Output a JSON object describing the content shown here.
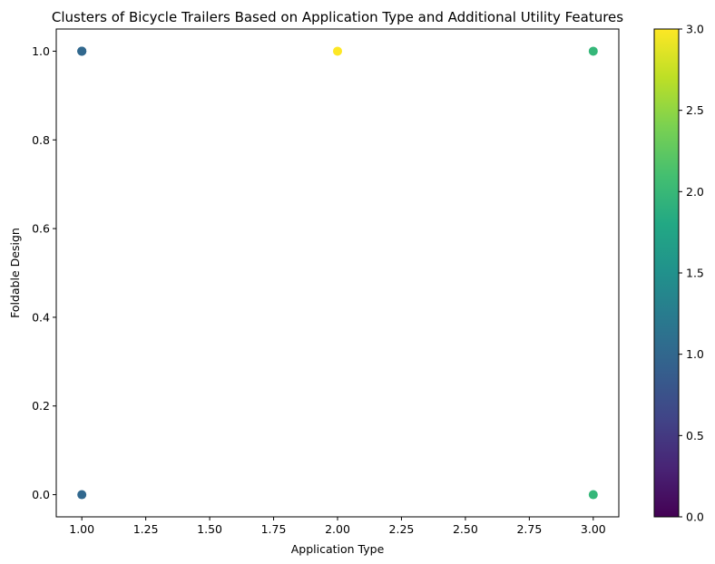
{
  "chart_data": {
    "type": "scatter",
    "title": "Clusters of Bicycle Trailers Based on Application Type and Additional Utility Features",
    "xlabel": "Application Type",
    "ylabel": "Foldable Design",
    "xlim": [
      0.9,
      3.1
    ],
    "ylim": [
      -0.05,
      1.05
    ],
    "xticks": [
      "1.00",
      "1.25",
      "1.50",
      "1.75",
      "2.00",
      "2.25",
      "2.50",
      "2.75",
      "3.00"
    ],
    "xtick_values": [
      1.0,
      1.25,
      1.5,
      1.75,
      2.0,
      2.25,
      2.5,
      2.75,
      3.0
    ],
    "yticks": [
      "0.0",
      "0.2",
      "0.4",
      "0.6",
      "0.8",
      "1.0"
    ],
    "ytick_values": [
      0.0,
      0.2,
      0.4,
      0.6,
      0.8,
      1.0
    ],
    "grid": false,
    "points": [
      {
        "x": 1,
        "y": 1,
        "cluster": 1
      },
      {
        "x": 1,
        "y": 1,
        "cluster": 1
      },
      {
        "x": 1,
        "y": 1,
        "cluster": 1
      },
      {
        "x": 1,
        "y": 0,
        "cluster": 1
      },
      {
        "x": 2,
        "y": 1,
        "cluster": 3
      },
      {
        "x": 3,
        "y": 1,
        "cluster": 2
      },
      {
        "x": 3,
        "y": 0,
        "cluster": 2
      }
    ],
    "colorbar": {
      "colormap": "viridis",
      "range": [
        0,
        3
      ],
      "ticks": [
        "0.0",
        "0.5",
        "1.0",
        "1.5",
        "2.0",
        "2.5",
        "3.0"
      ],
      "tick_values": [
        0.0,
        0.5,
        1.0,
        1.5,
        2.0,
        2.5,
        3.0
      ]
    },
    "colors": {
      "cluster_0": "#440154",
      "cluster_1": "#31688e",
      "cluster_2": "#35b779",
      "cluster_3": "#fde725"
    }
  }
}
